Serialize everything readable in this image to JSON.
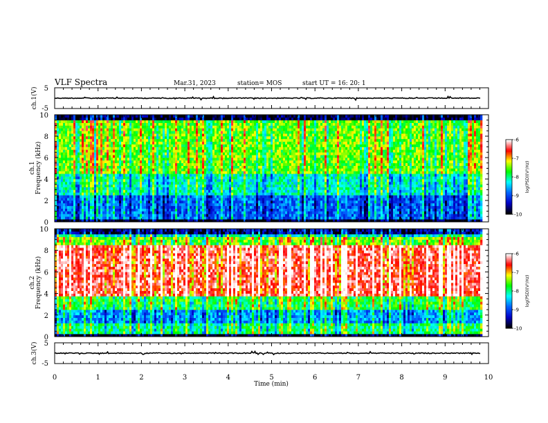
{
  "header": {
    "title": "VLF Spectra",
    "date": "Mar.31, 2023",
    "station": "station= MOS",
    "start": "start  UT =   16: 20: 1"
  },
  "chart_data": [
    {
      "type": "line",
      "ylabel": "ch.1(V)",
      "ylim": [
        -5,
        5
      ],
      "y_ticks": [
        5,
        -5
      ],
      "trace_level": 0
    },
    {
      "type": "heatmap",
      "ylabel": "ch.1",
      "ylabel2": "Frequency (kHz)",
      "ylim": [
        0,
        10
      ],
      "y_ticks": [
        0,
        2,
        4,
        6,
        8,
        10
      ],
      "colorbar": {
        "label": "log(PSD)(V²/Hz)",
        "ticks": [
          -6,
          -7,
          -8,
          -9,
          -10
        ],
        "range": [
          -10,
          -6
        ],
        "colors": [
          "#000000",
          "#0000c8",
          "#0064ff",
          "#00ffff",
          "#00ff00",
          "#ffff00",
          "#ff0000",
          "#ffffff"
        ]
      }
    },
    {
      "type": "heatmap",
      "ylabel": "ch.2",
      "ylabel2": "Frequency (kHz)",
      "ylim": [
        0,
        10
      ],
      "y_ticks": [
        0,
        2,
        4,
        6,
        8,
        10
      ],
      "colorbar": {
        "label": "log(PSD)(V²/Hz)",
        "ticks": [
          -6,
          -7,
          -8,
          -9,
          -10
        ],
        "range": [
          -10,
          -6
        ],
        "colors": [
          "#000000",
          "#0000c8",
          "#0064ff",
          "#00ffff",
          "#00ff00",
          "#ffff00",
          "#ff0000",
          "#ffffff"
        ]
      }
    },
    {
      "type": "line",
      "ylabel": "ch.3(V)",
      "ylim": [
        -5,
        5
      ],
      "y_ticks": [
        5,
        -5
      ],
      "trace_level": 0
    }
  ],
  "x_axis": {
    "label": "Time (min)",
    "ticks": [
      0,
      1,
      2,
      3,
      4,
      5,
      6,
      7,
      8,
      9,
      10
    ],
    "xlim": [
      0,
      10
    ],
    "data_end": 9.82
  }
}
